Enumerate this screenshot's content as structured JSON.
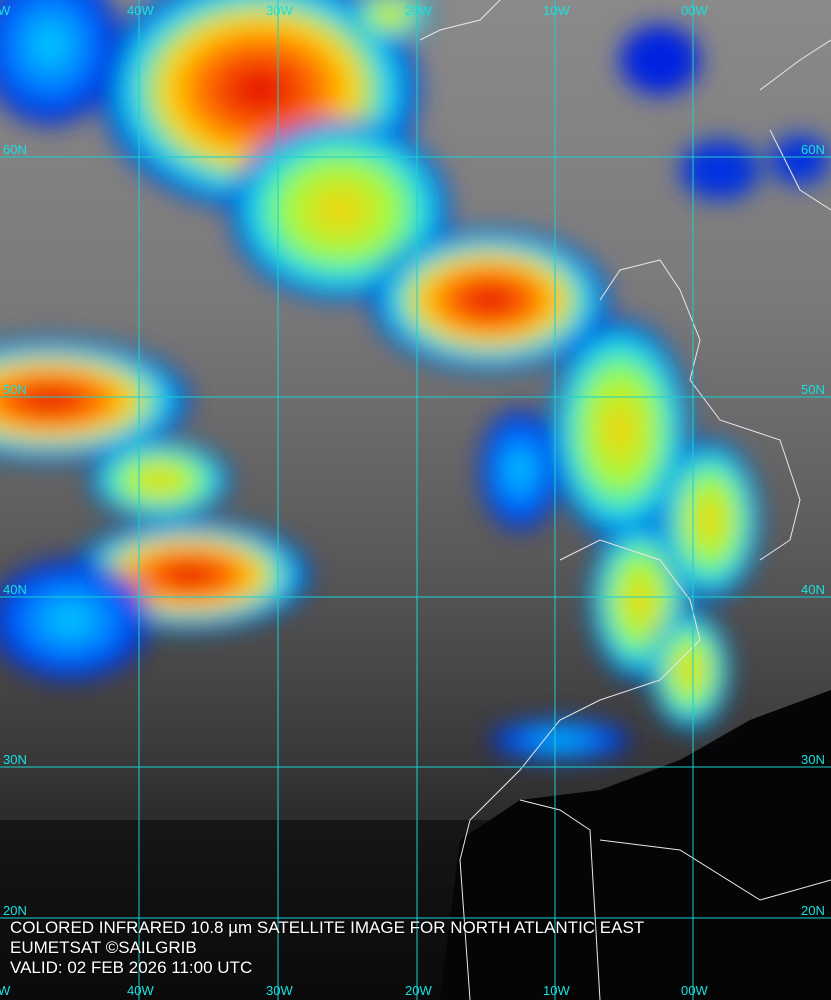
{
  "caption": {
    "line1": "COLORED INFRARED 10.8 µm SATELLITE IMAGE FOR NORTH ATLANTIC EAST",
    "line2": "EUMETSAT ©SAILGRIB",
    "line3": "VALID:  02 FEB 2026 11:00 UTC"
  },
  "grid": {
    "top_labels": [
      "W",
      "40W",
      "30W",
      "20W",
      "10W",
      "00W"
    ],
    "bottom_labels": [
      "W",
      "40W",
      "30W",
      "20W",
      "10W",
      "00W"
    ],
    "left_labels": [
      "60N",
      "50N",
      "40N",
      "30N",
      "20N"
    ],
    "right_labels": [
      "60N",
      "50N",
      "40N",
      "30N",
      "20N"
    ],
    "line_color": "#19d0d0"
  },
  "palette": {
    "cold_top": "#e00000",
    "mid": "#ffff00",
    "low": "#00e0ff",
    "edge": "#0010c0"
  }
}
